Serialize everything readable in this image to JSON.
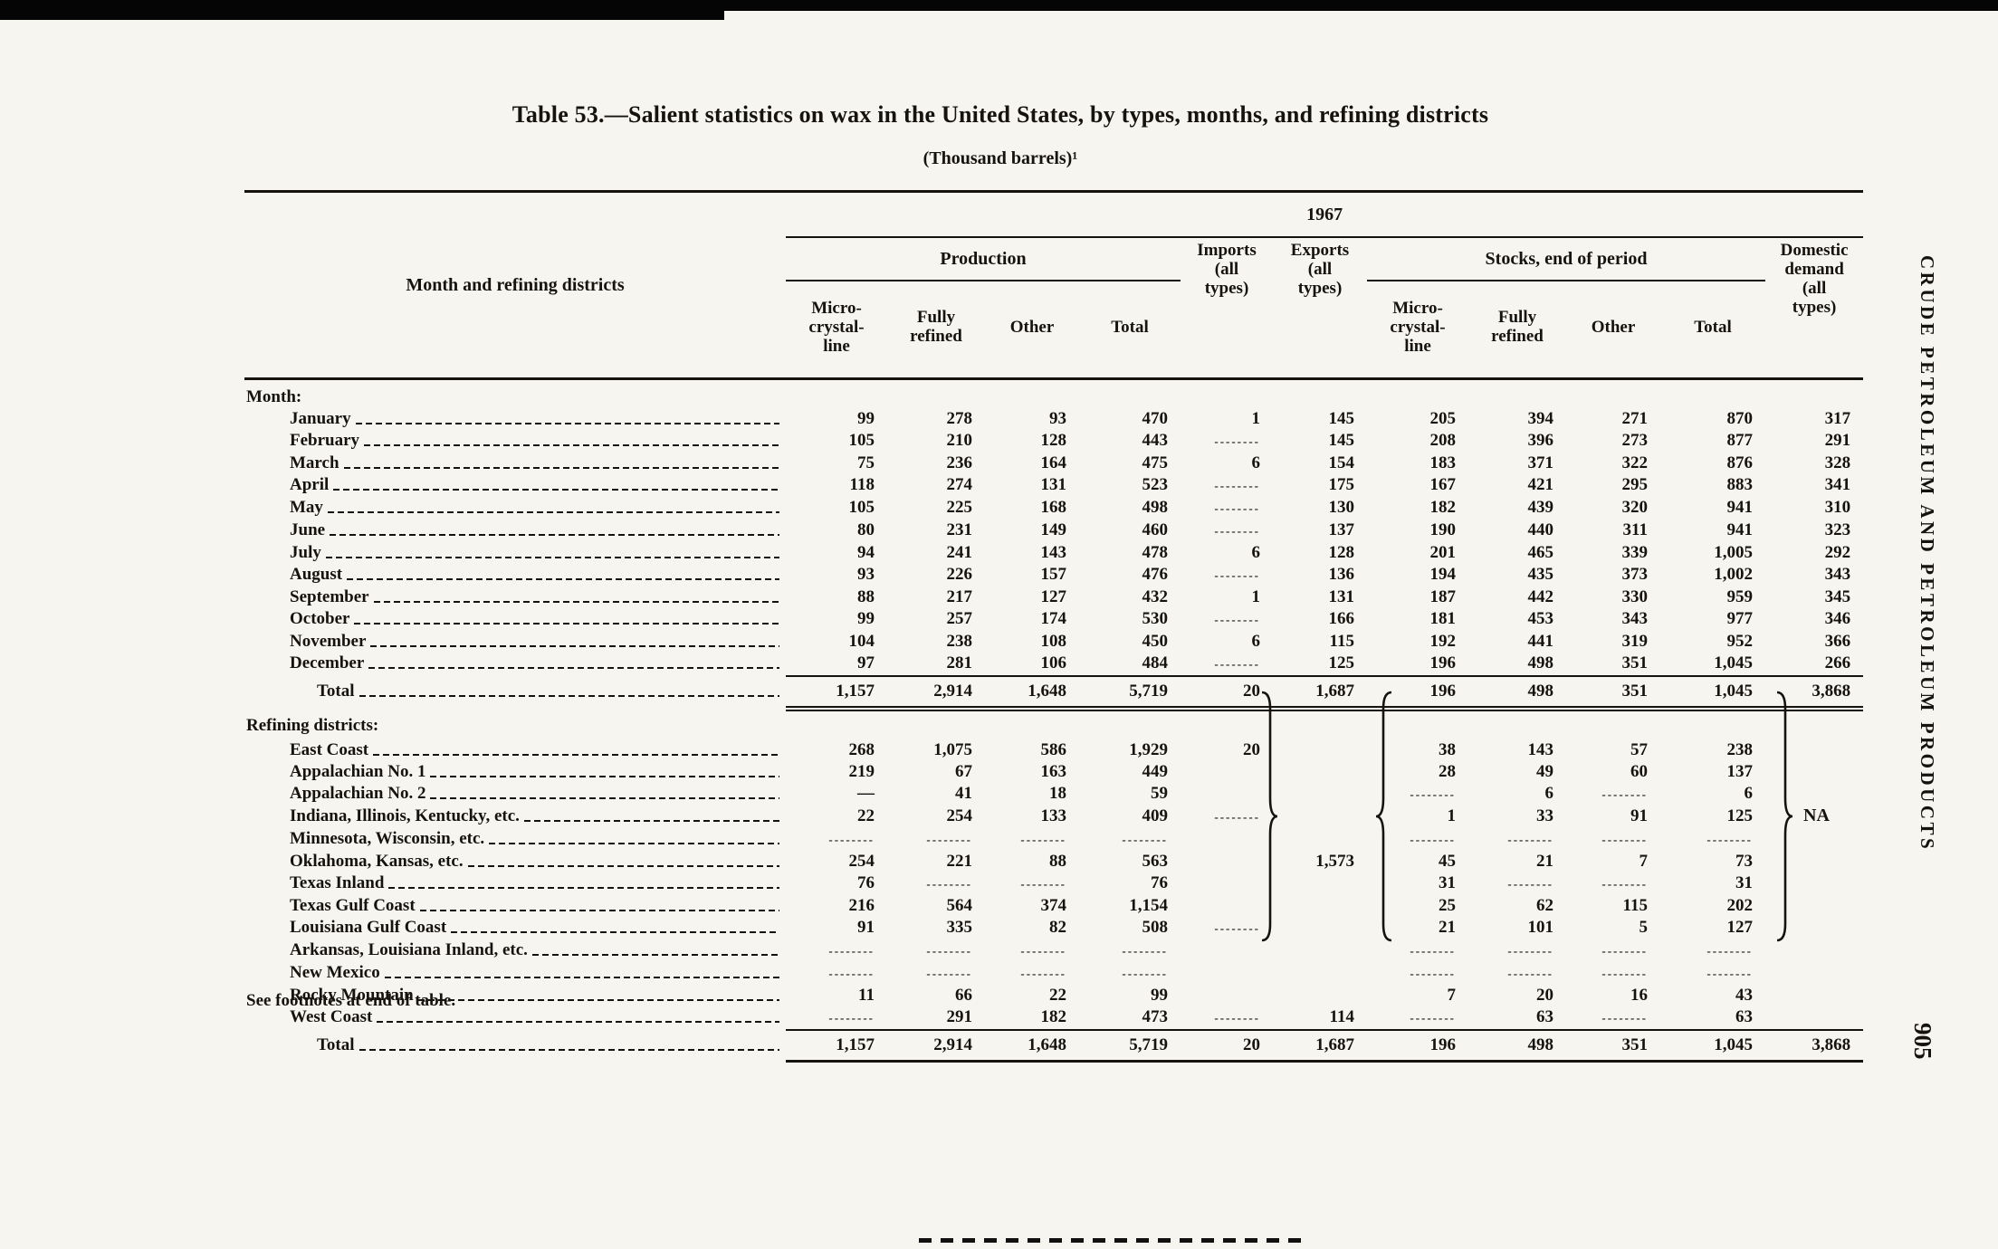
{
  "page": {
    "title": "Table 53.—Salient statistics on wax in the United States, by types, months, and refining districts",
    "subtitle": "(Thousand barrels)¹",
    "footnote": "See footnotes at end of table.",
    "side_label": "CRUDE PETROLEUM AND PETROLEUM PRODUCTS",
    "page_number": "905"
  },
  "table": {
    "stub_header": "Month and refining districts",
    "year": "1967",
    "no_data": "--------",
    "groups": {
      "production": "Production",
      "imports": "Imports\n(all\ntypes)",
      "exports": "Exports\n(all\ntypes)",
      "stocks": "Stocks, end of period",
      "demand": "Domestic\ndemand\n(all\ntypes)"
    },
    "subheads": {
      "micro": "Micro-\ncrystal-\nline",
      "fully": "Fully\nrefined",
      "other": "Other",
      "total": "Total"
    },
    "sections": [
      {
        "heading": {
          "label": "Month:"
        },
        "rows": [
          {
            "label": "January",
            "cells": [
              "99",
              "278",
              "93",
              "470",
              "1",
              "145",
              "205",
              "394",
              "271",
              "870",
              "317"
            ]
          },
          {
            "label": "February",
            "cells": [
              "105",
              "210",
              "128",
              "443",
              "--------",
              "145",
              "208",
              "396",
              "273",
              "877",
              "291"
            ]
          },
          {
            "label": "March",
            "cells": [
              "75",
              "236",
              "164",
              "475",
              "6",
              "154",
              "183",
              "371",
              "322",
              "876",
              "328"
            ]
          },
          {
            "label": "April",
            "cells": [
              "118",
              "274",
              "131",
              "523",
              "--------",
              "175",
              "167",
              "421",
              "295",
              "883",
              "341"
            ]
          },
          {
            "label": "May",
            "cells": [
              "105",
              "225",
              "168",
              "498",
              "--------",
              "130",
              "182",
              "439",
              "320",
              "941",
              "310"
            ]
          },
          {
            "label": "June",
            "cells": [
              "80",
              "231",
              "149",
              "460",
              "--------",
              "137",
              "190",
              "440",
              "311",
              "941",
              "323"
            ]
          },
          {
            "label": "July",
            "cells": [
              "94",
              "241",
              "143",
              "478",
              "6",
              "128",
              "201",
              "465",
              "339",
              "1,005",
              "292"
            ]
          },
          {
            "label": "August",
            "cells": [
              "93",
              "226",
              "157",
              "476",
              "--------",
              "136",
              "194",
              "435",
              "373",
              "1,002",
              "343"
            ]
          },
          {
            "label": "September",
            "cells": [
              "88",
              "217",
              "127",
              "432",
              "1",
              "131",
              "187",
              "442",
              "330",
              "959",
              "345"
            ]
          },
          {
            "label": "October",
            "cells": [
              "99",
              "257",
              "174",
              "530",
              "--------",
              "166",
              "181",
              "453",
              "343",
              "977",
              "346"
            ]
          },
          {
            "label": "November",
            "cells": [
              "104",
              "238",
              "108",
              "450",
              "6",
              "115",
              "192",
              "441",
              "319",
              "952",
              "366"
            ]
          },
          {
            "label": "December",
            "cells": [
              "97",
              "281",
              "106",
              "484",
              "--------",
              "125",
              "196",
              "498",
              "351",
              "1,045",
              "266"
            ]
          }
        ],
        "total": {
          "label": "Total",
          "cells": [
            "1,157",
            "2,914",
            "1,648",
            "5,719",
            "20",
            "1,687",
            "196",
            "498",
            "351",
            "1,045",
            "3,868"
          ]
        }
      },
      {
        "heading": {
          "label": "Refining districts:"
        },
        "rows": [
          {
            "label": "East Coast",
            "cells": [
              "268",
              "1,075",
              "586",
              "1,929",
              "20",
              "",
              "38",
              "143",
              "57",
              "238",
              ""
            ]
          },
          {
            "label": "Appalachian No. 1",
            "cells": [
              "219",
              "67",
              "163",
              "449",
              "",
              "",
              "28",
              "49",
              "60",
              "137",
              ""
            ]
          },
          {
            "label": "Appalachian No. 2",
            "cells": [
              "—",
              "41",
              "18",
              "59",
              "",
              "",
              "--------",
              "6",
              "--------",
              "6",
              ""
            ]
          },
          {
            "label": "Indiana, Illinois, Kentucky, etc.",
            "cells": [
              "22",
              "254",
              "133",
              "409",
              "--------",
              "",
              "1",
              "33",
              "91",
              "125",
              ""
            ]
          },
          {
            "label": "Minnesota, Wisconsin, etc.",
            "cells": [
              "--------",
              "--------",
              "--------",
              "--------",
              "",
              "",
              "--------",
              "--------",
              "--------",
              "--------",
              ""
            ]
          },
          {
            "label": "Oklahoma, Kansas, etc.",
            "cells": [
              "254",
              "221",
              "88",
              "563",
              "",
              "1,573",
              "45",
              "21",
              "7",
              "73",
              ""
            ]
          },
          {
            "label": "Texas Inland",
            "cells": [
              "76",
              "--------",
              "--------",
              "76",
              "",
              "",
              "31",
              "--------",
              "--------",
              "31",
              ""
            ]
          },
          {
            "label": "Texas Gulf Coast",
            "cells": [
              "216",
              "564",
              "374",
              "1,154",
              "",
              "",
              "25",
              "62",
              "115",
              "202",
              ""
            ]
          },
          {
            "label": "Louisiana Gulf Coast",
            "cells": [
              "91",
              "335",
              "82",
              "508",
              "--------",
              "",
              "21",
              "101",
              "5",
              "127",
              ""
            ]
          },
          {
            "label": "Arkansas, Louisiana Inland, etc.",
            "cells": [
              "--------",
              "--------",
              "--------",
              "--------",
              "",
              "",
              "--------",
              "--------",
              "--------",
              "--------",
              ""
            ]
          },
          {
            "label": "New Mexico",
            "cells": [
              "--------",
              "--------",
              "--------",
              "--------",
              "",
              "",
              "--------",
              "--------",
              "--------",
              "--------",
              ""
            ]
          },
          {
            "label": "Rocky Mountain",
            "cells": [
              "11",
              "66",
              "22",
              "99",
              "",
              "",
              "7",
              "20",
              "16",
              "43",
              ""
            ]
          },
          {
            "label": "West Coast",
            "cells": [
              "--------",
              "291",
              "182",
              "473",
              "--------",
              "114",
              "--------",
              "63",
              "--------",
              "63",
              ""
            ]
          }
        ],
        "total": {
          "label": "Total",
          "cells": [
            "1,157",
            "2,914",
            "1,648",
            "5,719",
            "20",
            "1,687",
            "196",
            "498",
            "351",
            "1,045",
            "3,868"
          ]
        },
        "annotations": {
          "na": "NA"
        }
      }
    ]
  }
}
